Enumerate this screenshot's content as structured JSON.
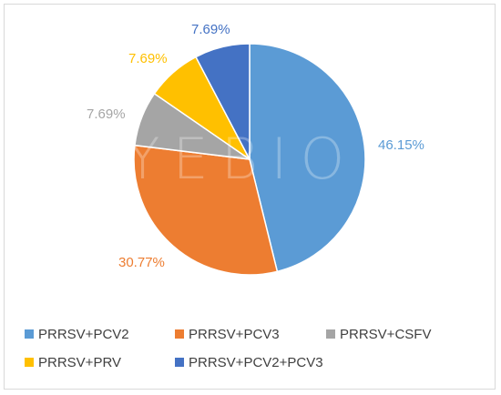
{
  "chart_data": {
    "type": "pie",
    "title": "",
    "categories": [
      "PRRSV+PCV2",
      "PRRSV+PCV3",
      "PRRSV+CSFV",
      "PRRSV+PRV",
      "PRRSV+PCV2+PCV3"
    ],
    "values": [
      46.15,
      30.77,
      7.69,
      7.69,
      7.69
    ],
    "labels": [
      "46.15%",
      "30.77%",
      "7.69%",
      "7.69%",
      "7.69%"
    ],
    "colors": [
      "#5B9BD5",
      "#ED7D31",
      "#A5A5A5",
      "#FFC000",
      "#4472C4"
    ],
    "start_angle_deg": 0,
    "direction": "clockwise",
    "legend_position": "bottom"
  },
  "watermark": "YEBIO"
}
